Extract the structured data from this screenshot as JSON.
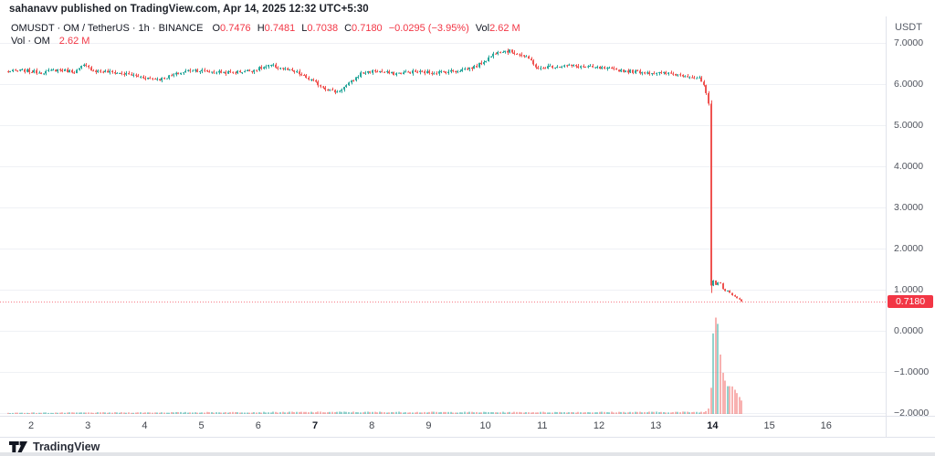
{
  "attribution": {
    "text": "sahanavv published on TradingView.com, Apr 14, 2025 12:32 UTC+5:30"
  },
  "legend": {
    "title": "OMUSDT · OM / TetherUS · 1h · BINANCE",
    "ohlc": {
      "o_key": "O",
      "o_val": "0.7476",
      "h_key": "H",
      "h_val": "0.7481",
      "l_key": "L",
      "l_val": "0.7038",
      "c_key": "C",
      "c_val": "0.7180"
    },
    "change": "−0.0295 (−3.95%)",
    "vol_key": "Vol",
    "vol_val": "2.62 M",
    "row2_label": "Vol · OM",
    "row2_value": "2.62 M"
  },
  "price_scale": {
    "currency": "USDT",
    "last_price_label": "0.7180",
    "last_price_value": 0.718,
    "ticks": [
      {
        "label": "7.0000",
        "value": 7
      },
      {
        "label": "6.0000",
        "value": 6
      },
      {
        "label": "5.0000",
        "value": 5
      },
      {
        "label": "4.0000",
        "value": 4
      },
      {
        "label": "3.0000",
        "value": 3
      },
      {
        "label": "2.0000",
        "value": 2
      },
      {
        "label": "1.0000",
        "value": 1
      },
      {
        "label": "0.0000",
        "value": 0
      },
      {
        "label": "−1.0000",
        "value": -1
      },
      {
        "label": "−2.0000",
        "value": -2
      }
    ]
  },
  "time_scale": {
    "ticks": [
      {
        "label": "2",
        "day": 2,
        "bold": false
      },
      {
        "label": "3",
        "day": 3,
        "bold": false
      },
      {
        "label": "4",
        "day": 4,
        "bold": false
      },
      {
        "label": "5",
        "day": 5,
        "bold": false
      },
      {
        "label": "6",
        "day": 6,
        "bold": false
      },
      {
        "label": "7",
        "day": 7,
        "bold": true
      },
      {
        "label": "8",
        "day": 8,
        "bold": false
      },
      {
        "label": "9",
        "day": 9,
        "bold": false
      },
      {
        "label": "10",
        "day": 10,
        "bold": false
      },
      {
        "label": "11",
        "day": 11,
        "bold": false
      },
      {
        "label": "12",
        "day": 12,
        "bold": false
      },
      {
        "label": "13",
        "day": 13,
        "bold": false
      },
      {
        "label": "14",
        "day": 14,
        "bold": true
      },
      {
        "label": "15",
        "day": 15,
        "bold": false
      },
      {
        "label": "16",
        "day": 16,
        "bold": false
      }
    ]
  },
  "footer": {
    "brand": "TradingView"
  },
  "chart_data": {
    "type": "candlestick",
    "symbol": "OMUSDT",
    "description": "OM / TetherUS",
    "exchange": "BINANCE",
    "interval": "1h",
    "ohlc_last": {
      "open": 0.7476,
      "high": 0.7481,
      "low": 0.7038,
      "close": 0.718,
      "change": -0.0295,
      "change_pct": -3.95,
      "volume": "2.62 M"
    },
    "y_axis": {
      "label": "USDT",
      "min": -2,
      "max": 7.25,
      "ticks": [
        7,
        6,
        5,
        4,
        3,
        2,
        1,
        0,
        -1,
        -2
      ],
      "grid": true
    },
    "x_axis": {
      "unit": "day of April 2025",
      "first_candle_day": 1.58,
      "last_candle_day": 14.57,
      "visible_end_day": 17.05,
      "ticks": [
        2,
        3,
        4,
        5,
        6,
        7,
        8,
        9,
        10,
        11,
        12,
        13,
        14,
        15,
        16
      ],
      "bold_ticks": [
        7,
        14
      ]
    },
    "last_price": 0.718,
    "price_keypoints": [
      [
        1.58,
        6.3
      ],
      [
        1.9,
        6.33
      ],
      [
        2.2,
        6.28
      ],
      [
        2.5,
        6.35
      ],
      [
        2.8,
        6.3
      ],
      [
        2.95,
        6.45
      ],
      [
        3.15,
        6.32
      ],
      [
        3.5,
        6.28
      ],
      [
        3.8,
        6.22
      ],
      [
        4.05,
        6.15
      ],
      [
        4.3,
        6.12
      ],
      [
        4.6,
        6.25
      ],
      [
        4.85,
        6.35
      ],
      [
        5.2,
        6.3
      ],
      [
        5.55,
        6.28
      ],
      [
        5.9,
        6.33
      ],
      [
        6.25,
        6.45
      ],
      [
        6.45,
        6.38
      ],
      [
        6.7,
        6.28
      ],
      [
        6.95,
        6.1
      ],
      [
        7.2,
        5.9
      ],
      [
        7.4,
        5.8
      ],
      [
        7.6,
        5.98
      ],
      [
        7.85,
        6.28
      ],
      [
        8.1,
        6.32
      ],
      [
        8.4,
        6.25
      ],
      [
        8.75,
        6.3
      ],
      [
        9.1,
        6.28
      ],
      [
        9.5,
        6.32
      ],
      [
        9.85,
        6.42
      ],
      [
        10.05,
        6.6
      ],
      [
        10.25,
        6.82
      ],
      [
        10.45,
        6.8
      ],
      [
        10.65,
        6.72
      ],
      [
        10.85,
        6.55
      ],
      [
        10.95,
        6.35
      ],
      [
        11.1,
        6.42
      ],
      [
        11.45,
        6.45
      ],
      [
        11.75,
        6.42
      ],
      [
        12.1,
        6.38
      ],
      [
        12.5,
        6.32
      ],
      [
        12.9,
        6.28
      ],
      [
        13.3,
        6.25
      ],
      [
        13.6,
        6.2
      ],
      [
        13.8,
        6.12
      ],
      [
        13.88,
        5.95
      ],
      [
        13.93,
        5.65
      ],
      [
        13.96,
        5.5
      ],
      [
        14.0,
        0.7
      ],
      [
        14.05,
        1.38
      ],
      [
        14.09,
        1.02
      ],
      [
        14.14,
        1.28
      ],
      [
        14.18,
        1.08
      ],
      [
        14.23,
        0.95
      ],
      [
        14.3,
        0.98
      ],
      [
        14.38,
        0.86
      ],
      [
        14.46,
        0.78
      ],
      [
        14.57,
        0.72
      ]
    ],
    "volume_keypoints": [
      [
        1.58,
        0.012
      ],
      [
        7.3,
        0.02
      ],
      [
        10.2,
        0.018
      ],
      [
        13.85,
        0.02
      ],
      [
        13.92,
        0.06
      ],
      [
        13.96,
        0.3
      ],
      [
        14.0,
        0.88
      ],
      [
        14.04,
        1.0
      ],
      [
        14.08,
        0.93
      ],
      [
        14.13,
        0.55
      ],
      [
        14.17,
        0.4
      ],
      [
        14.22,
        0.32
      ],
      [
        14.26,
        0.27
      ],
      [
        14.31,
        0.3
      ],
      [
        14.36,
        0.26
      ],
      [
        14.42,
        0.21
      ],
      [
        14.48,
        0.15
      ],
      [
        14.57,
        0.09
      ]
    ],
    "colors": {
      "up": "#26a69a",
      "down": "#ef5350",
      "vol_up": "rgba(38,166,154,0.5)",
      "vol_down": "rgba(239,83,80,0.45)",
      "grid": "#eff1f5",
      "price_line": "#f23645",
      "label_bg": "#f23645",
      "label_text": "#ffffff"
    }
  }
}
